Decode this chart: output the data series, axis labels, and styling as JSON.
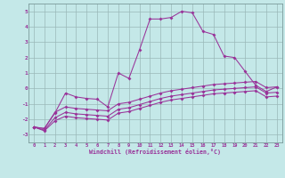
{
  "xlabel": "Windchill (Refroidissement éolien,°C)",
  "bg_color": "#c4e8e8",
  "line_color": "#993399",
  "grid_color": "#9ab8b8",
  "xlim": [
    -0.5,
    23.5
  ],
  "ylim": [
    -3.5,
    5.5
  ],
  "xticks": [
    0,
    1,
    2,
    3,
    4,
    5,
    6,
    7,
    8,
    9,
    10,
    11,
    12,
    13,
    14,
    15,
    16,
    17,
    18,
    19,
    20,
    21,
    22,
    23
  ],
  "yticks": [
    -3,
    -2,
    -1,
    0,
    1,
    2,
    3,
    4,
    5
  ],
  "line1_x": [
    0,
    1,
    2,
    3,
    4,
    5,
    6,
    7,
    8,
    9,
    10,
    11,
    12,
    13,
    14,
    15,
    16,
    17,
    18,
    19,
    20,
    21,
    22,
    23
  ],
  "line1_y": [
    -2.5,
    -2.6,
    -1.6,
    -0.3,
    -0.55,
    -0.65,
    -0.7,
    -1.2,
    1.0,
    0.65,
    2.5,
    4.5,
    4.5,
    4.6,
    5.0,
    4.9,
    3.7,
    3.5,
    2.1,
    2.0,
    1.1,
    0.2,
    -0.2,
    0.1
  ],
  "line2_x": [
    0,
    1,
    2,
    3,
    4,
    5,
    6,
    7,
    8,
    9,
    10,
    11,
    12,
    13,
    14,
    15,
    16,
    17,
    18,
    19,
    20,
    21,
    22,
    23
  ],
  "line2_y": [
    -2.5,
    -2.6,
    -1.55,
    -1.2,
    -1.3,
    -1.35,
    -1.4,
    -1.45,
    -1.0,
    -0.9,
    -0.7,
    -0.5,
    -0.3,
    -0.15,
    -0.05,
    0.05,
    0.15,
    0.25,
    0.3,
    0.35,
    0.4,
    0.45,
    0.05,
    0.1
  ],
  "line3_x": [
    0,
    1,
    2,
    3,
    4,
    5,
    6,
    7,
    8,
    9,
    10,
    11,
    12,
    13,
    14,
    15,
    16,
    17,
    18,
    19,
    20,
    21,
    22,
    23
  ],
  "line3_y": [
    -2.5,
    -2.7,
    -1.9,
    -1.55,
    -1.65,
    -1.7,
    -1.75,
    -1.8,
    -1.35,
    -1.25,
    -1.05,
    -0.85,
    -0.65,
    -0.5,
    -0.4,
    -0.3,
    -0.2,
    -0.1,
    -0.05,
    0.0,
    0.05,
    0.1,
    -0.3,
    -0.25
  ],
  "line4_x": [
    0,
    1,
    2,
    3,
    4,
    5,
    6,
    7,
    8,
    9,
    10,
    11,
    12,
    13,
    14,
    15,
    16,
    17,
    18,
    19,
    20,
    21,
    22,
    23
  ],
  "line4_y": [
    -2.5,
    -2.75,
    -2.1,
    -1.8,
    -1.9,
    -1.95,
    -2.0,
    -2.05,
    -1.6,
    -1.5,
    -1.3,
    -1.1,
    -0.9,
    -0.75,
    -0.65,
    -0.55,
    -0.45,
    -0.35,
    -0.3,
    -0.25,
    -0.2,
    -0.15,
    -0.55,
    -0.5
  ]
}
